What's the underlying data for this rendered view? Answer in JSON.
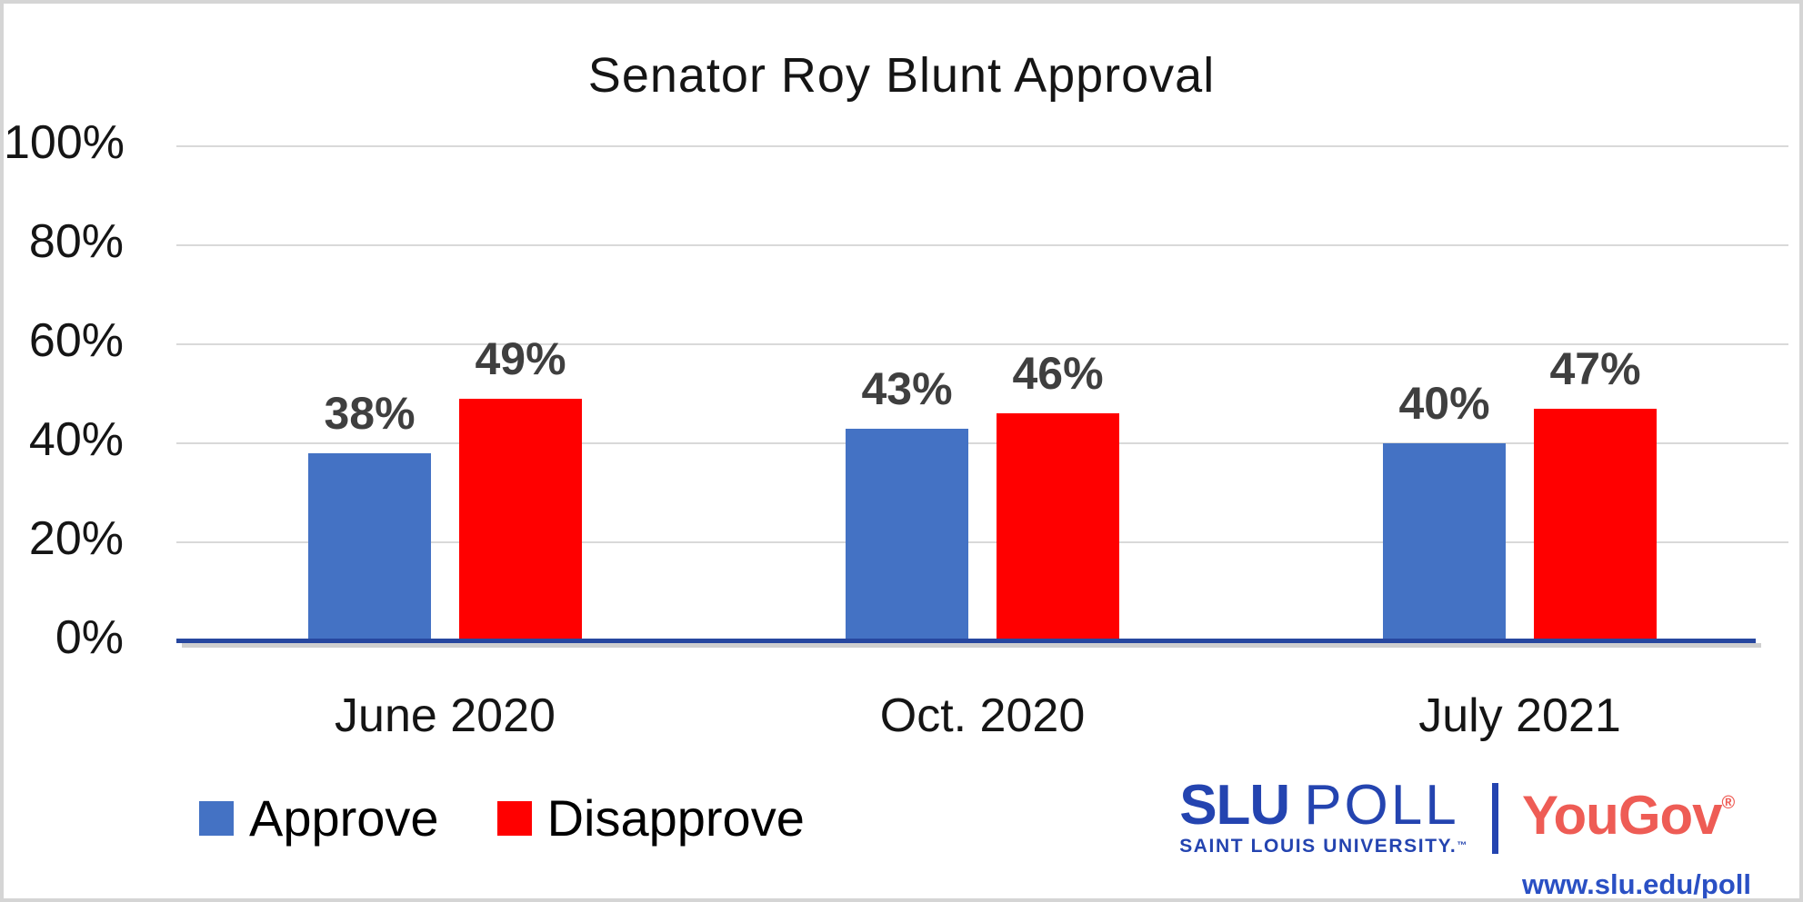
{
  "chart_data": {
    "type": "bar",
    "title": "Senator Roy Blunt Approval",
    "categories": [
      "June 2020",
      "Oct. 2020",
      "July 2021"
    ],
    "series": [
      {
        "name": "Approve",
        "color": "#4472C4",
        "values": [
          38,
          43,
          40
        ]
      },
      {
        "name": "Disapprove",
        "color": "#FF0000",
        "values": [
          49,
          46,
          47
        ]
      }
    ],
    "value_suffix": "%",
    "data_labels": [
      "38%",
      "49%",
      "43%",
      "46%",
      "40%",
      "47%"
    ],
    "y_tick_values": [
      100,
      80,
      60,
      40,
      20,
      0
    ],
    "y_tick_labels": [
      "100%",
      "80%",
      "60%",
      "40%",
      "20%",
      "0%"
    ],
    "ylim": [
      0,
      100
    ],
    "grid": true,
    "legend_position": "bottom-left",
    "xlabel": "",
    "ylabel": "",
    "axis_color": "#27479f",
    "gridline_color": "#d9d9d9",
    "data_label_color": "#3f3f3f"
  },
  "branding": {
    "slu_name_bold": "SLU",
    "slu_name_light": "POLL",
    "slu_subtitle": "SAINT LOUIS UNIVERSITY.",
    "slu_trademark": "™",
    "slu_color": "#2444b0",
    "yougov_name": "YouGov",
    "yougov_registered": "®",
    "yougov_color": "#ee5c55",
    "url": "www.slu.edu/poll",
    "url_color": "#2a50c4"
  }
}
